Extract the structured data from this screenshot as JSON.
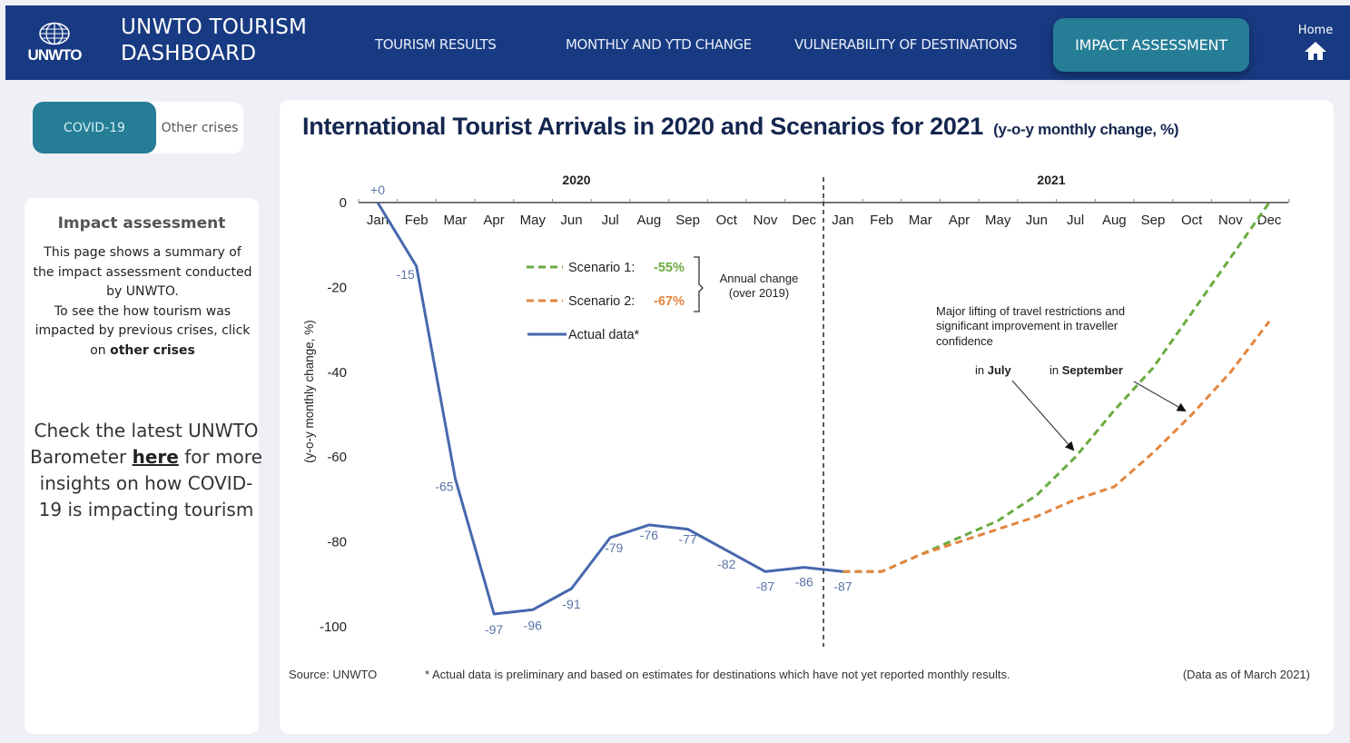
{
  "header": {
    "logo_text": "UNWTO",
    "title_line1": "UNWTO TOURISM",
    "title_line2": "DASHBOARD",
    "nav": [
      {
        "label": "TOURISM RESULTS"
      },
      {
        "label": "MONTHLY AND YTD CHANGE"
      },
      {
        "label": "VULNERABILITY OF DESTINATIONS"
      },
      {
        "label": "IMPACT ASSESSMENT",
        "active": true
      }
    ],
    "home_label": "Home"
  },
  "sidebar": {
    "toggle": {
      "active": "COVID-19",
      "inactive": "Other crises"
    },
    "heading": "Impact assessment",
    "desc_part1": "This page shows a summary of the impact assessment conducted by UNWTO.",
    "desc_part2": "To see the how tourism was impacted by previous crises, click on",
    "desc_link": "other crises",
    "baro_part1": "Check the latest UNWTO Barometer",
    "baro_link": "here",
    "baro_part2": "for more insights on how COVID-19 is impacting tourism"
  },
  "colors": {
    "header_bg": "#183a82",
    "accent": "#257d96",
    "actual": "#4668ad",
    "scenario1": "#6aab3f",
    "scenario2": "#e3853f"
  },
  "chart_data": {
    "type": "line",
    "title": "International Tourist Arrivals in 2020 and Scenarios for 2021",
    "subtitle": "(y-o-y monthly change, %)",
    "ylabel": "(y-o-y monthly change, %)",
    "xlabel": "",
    "ylim": [
      -100,
      0
    ],
    "yticks": [
      0,
      -20,
      -40,
      -60,
      -80,
      -100
    ],
    "year_labels": [
      "2020",
      "2021"
    ],
    "categories": [
      "Jan",
      "Feb",
      "Mar",
      "Apr",
      "May",
      "Jun",
      "Jul",
      "Aug",
      "Sep",
      "Oct",
      "Nov",
      "Dec",
      "Jan",
      "Feb",
      "Mar",
      "Apr",
      "May",
      "Jun",
      "Jul",
      "Aug",
      "Sep",
      "Oct",
      "Nov",
      "Dec"
    ],
    "series": [
      {
        "name": "Actual data*",
        "style": "solid",
        "start_index": 0,
        "values": [
          0,
          -15,
          -65,
          -97,
          -96,
          -91,
          -79,
          -76,
          -77,
          -82,
          -87,
          -86,
          -87
        ],
        "labels": [
          "+0",
          "-15",
          "-65",
          "-97",
          "-96",
          "-91",
          "-79",
          "-76",
          "-77",
          "-82",
          "-87",
          "-86",
          "-87"
        ]
      },
      {
        "name": "Scenario 1",
        "style": "dashed",
        "annual_change": "-55%",
        "start_index": 12,
        "values": [
          -87,
          -87,
          -83,
          -79,
          -75,
          -69,
          -60,
          -49,
          -39,
          -26,
          -13,
          0
        ]
      },
      {
        "name": "Scenario 2",
        "style": "dashed",
        "annual_change": "-67%",
        "start_index": 12,
        "values": [
          -87,
          -87,
          -83,
          -80,
          -77,
          -74,
          -70,
          -67,
          -59,
          -50,
          -40,
          -28
        ]
      }
    ],
    "legend": {
      "position": "top-center",
      "s1_label": "Scenario 1:",
      "s2_label": "Scenario 2:",
      "actual_label": "Actual data*",
      "bracket_line1": "Annual  change",
      "bracket_line2": "(over 2019)"
    },
    "annotations": {
      "note_line1": "Major  lifting  of  travel  restrictions  and",
      "note_line2": "significant  improvement  in  traveller",
      "note_line3": "confidence",
      "july_prefix": "in ",
      "july_bold": "July",
      "sept_prefix": "in ",
      "sept_bold": "September"
    },
    "footer": {
      "source": "Source: UNWTO",
      "note": "* Actual data is preliminary and based on estimates for destinations which have not yet reported monthly results.",
      "date": "(Data as of March 2021)"
    }
  }
}
